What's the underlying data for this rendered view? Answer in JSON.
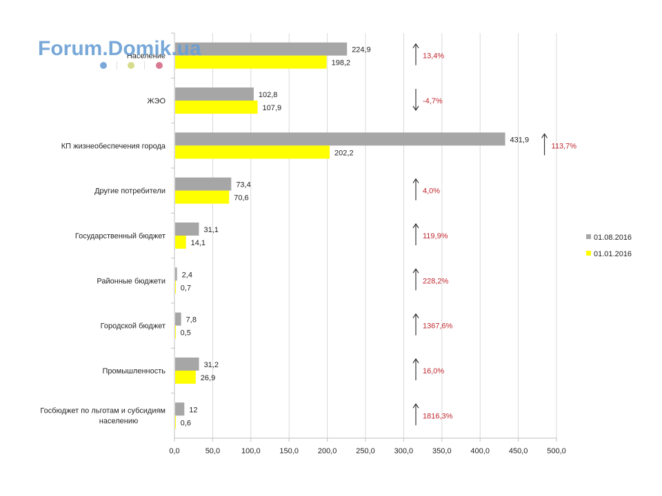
{
  "watermark": {
    "text": "Forum.Domik.ua",
    "dot_colors": [
      "#7aa8d8",
      "#d6dc8c",
      "#d97a92"
    ]
  },
  "colors": {
    "series_current": "#a6a6a6",
    "series_previous": "#ffff00",
    "change_label": "#c0262d",
    "axis": "#bfbfbf",
    "grid": "#d9d9d9"
  },
  "chart_data": {
    "type": "bar",
    "orientation": "horizontal",
    "categories": [
      "Население",
      "ЖЭО",
      "КП жизнеобеспечения  города",
      "Другие потребители",
      "Государственный бюджет",
      "Районные бюджети",
      "Городской бюджет",
      "Промышленность",
      "Госбюджет  по льготам и субсидиям населению"
    ],
    "series": [
      {
        "name": "01.08.2016",
        "values": [
          224.9,
          102.8,
          431.9,
          73.4,
          31.1,
          2.4,
          7.8,
          31.2,
          12
        ],
        "labels": [
          "224,9",
          "102,8",
          "431,9",
          "73,4",
          "31,1",
          "2,4",
          "7,8",
          "31,2",
          "12"
        ]
      },
      {
        "name": "01.01.2016",
        "values": [
          198.2,
          107.9,
          202.2,
          70.6,
          14.1,
          0.7,
          0.5,
          26.9,
          0.6
        ],
        "labels": [
          "198,2",
          "107,9",
          "202,2",
          "70,6",
          "14,1",
          "0,7",
          "0,5",
          "26,9",
          "0,6"
        ]
      }
    ],
    "changes": [
      {
        "label": "13,4%",
        "direction": "up"
      },
      {
        "label": "-4,7%",
        "direction": "down"
      },
      {
        "label": "113,7%",
        "direction": "up"
      },
      {
        "label": "4,0%",
        "direction": "up"
      },
      {
        "label": "119,9%",
        "direction": "up"
      },
      {
        "label": "228,2%",
        "direction": "up"
      },
      {
        "label": "1367,6%",
        "direction": "up"
      },
      {
        "label": "16,0%",
        "direction": "up"
      },
      {
        "label": "1816,3%",
        "direction": "up"
      }
    ],
    "xlim": [
      0,
      500
    ],
    "xticks": [
      "0,0",
      "50,0",
      "100,0",
      "150,0",
      "200,0",
      "250,0",
      "300,0",
      "350,0",
      "400,0",
      "450,0",
      "500,0"
    ],
    "grid": true,
    "legend_position": "right"
  }
}
